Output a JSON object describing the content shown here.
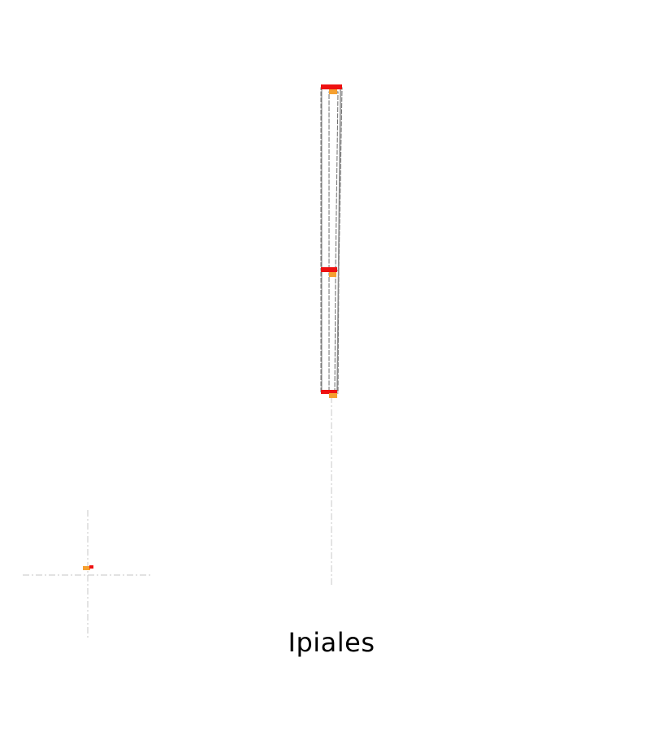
{
  "map": {
    "title": "Ipiales",
    "colors": {
      "boundary": "#6b6b6b",
      "guide_line": "#d0d0d0",
      "node_red": "#ee1111",
      "node_orange": "#f5a030",
      "background": "#ffffff"
    }
  }
}
